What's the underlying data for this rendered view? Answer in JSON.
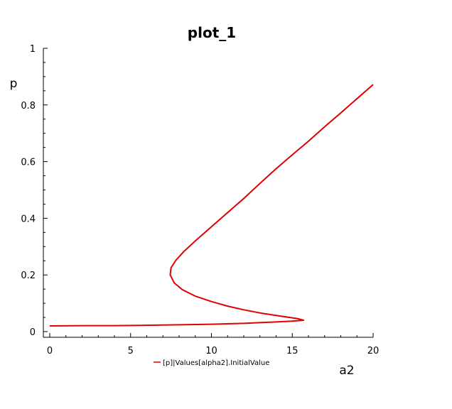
{
  "chart_data": {
    "type": "line",
    "title": "plot_1",
    "xlabel": "a2",
    "ylabel": "p",
    "xlim": [
      0,
      20
    ],
    "ylim": [
      0,
      1
    ],
    "grid": false,
    "legend_position": "bottom",
    "x_ticks": [
      {
        "value": 0,
        "label": "0"
      },
      {
        "value": 5,
        "label": "5"
      },
      {
        "value": 10,
        "label": "10"
      },
      {
        "value": 15,
        "label": "15"
      },
      {
        "value": 20,
        "label": "20"
      }
    ],
    "y_ticks": [
      {
        "value": 0,
        "label": "0"
      },
      {
        "value": 0.2,
        "label": "0.2"
      },
      {
        "value": 0.4,
        "label": "0.4"
      },
      {
        "value": 0.6,
        "label": "0.6"
      },
      {
        "value": 0.8,
        "label": "0.8"
      },
      {
        "value": 1,
        "label": "1"
      }
    ],
    "series": [
      {
        "name": "[p]|Values[alpha2].InitialValue",
        "color": "#e00000",
        "points": [
          [
            0.0,
            0.02
          ],
          [
            2.0,
            0.021
          ],
          [
            4.0,
            0.021
          ],
          [
            5.5,
            0.022
          ],
          [
            8.0,
            0.024
          ],
          [
            10.0,
            0.026
          ],
          [
            12.0,
            0.029
          ],
          [
            14.0,
            0.034
          ],
          [
            15.0,
            0.037
          ],
          [
            15.7,
            0.04
          ],
          [
            15.3,
            0.046
          ],
          [
            14.0,
            0.057
          ],
          [
            13.0,
            0.066
          ],
          [
            12.0,
            0.077
          ],
          [
            11.0,
            0.09
          ],
          [
            10.0,
            0.106
          ],
          [
            9.0,
            0.125
          ],
          [
            8.2,
            0.148
          ],
          [
            7.7,
            0.172
          ],
          [
            7.45,
            0.2
          ],
          [
            7.5,
            0.225
          ],
          [
            7.8,
            0.252
          ],
          [
            8.3,
            0.283
          ],
          [
            9.0,
            0.32
          ],
          [
            10.0,
            0.37
          ],
          [
            11.0,
            0.42
          ],
          [
            12.0,
            0.47
          ],
          [
            13.0,
            0.523
          ],
          [
            14.0,
            0.575
          ],
          [
            15.0,
            0.624
          ],
          [
            16.0,
            0.672
          ],
          [
            17.0,
            0.723
          ],
          [
            18.0,
            0.772
          ],
          [
            19.0,
            0.822
          ],
          [
            20.0,
            0.872
          ]
        ]
      }
    ]
  }
}
